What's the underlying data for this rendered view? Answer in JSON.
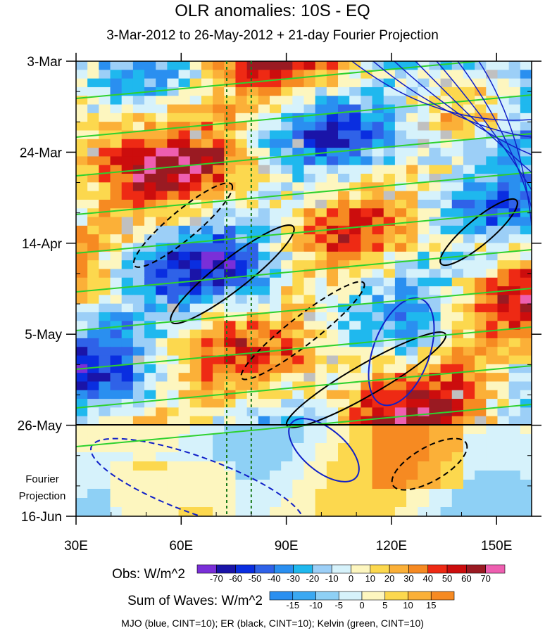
{
  "title": "OLR anomalies: 10S - EQ",
  "subtitle": "3-Mar-2012 to 26-May-2012 + 21-day Fourier Projection",
  "footer": "MJO (blue, CINT=10); ER (black, CINT=10); Kelvin (green, CINT=10)",
  "fourier_label": [
    "Fourier",
    "Projection"
  ],
  "chart_data": {
    "type": "heatmap",
    "title": "OLR anomalies: 10S - EQ",
    "subtitle": "3-Mar-2012 to 26-May-2012 + 21-day Fourier Projection",
    "x_axis": {
      "label": "",
      "range": [
        30,
        160
      ],
      "ticks": [
        "30E",
        "60E",
        "90E",
        "120E",
        "150E"
      ],
      "tick_values": [
        30,
        60,
        90,
        120,
        150
      ]
    },
    "y_axis": {
      "label": "",
      "range": [
        "3-Mar-2012",
        "16-Jun-2012"
      ],
      "reversed": true,
      "ticks": [
        "3-Mar",
        "24-Mar",
        "14-Apr",
        "5-May",
        "26-May",
        "16-Jun"
      ]
    },
    "projection_start": "26-May",
    "reference_longitudes": [
      73,
      80
    ],
    "obs_colorbar": {
      "label": "Obs: W/m^2",
      "tick_labels": [
        "-70",
        "-60",
        "-50",
        "-40",
        "-30",
        "-20",
        "-10",
        "0",
        "10",
        "20",
        "30",
        "40",
        "50",
        "60",
        "70"
      ],
      "colors": [
        "#7a2fd8",
        "#1a14a8",
        "#0a2ee0",
        "#2f62e8",
        "#2a8ff0",
        "#1fb8ee",
        "#9ccff7",
        "#d6f2fb",
        "#fdf6bf",
        "#fcd84e",
        "#fbb038",
        "#f68a22",
        "#ee2a14",
        "#cc0d0d",
        "#9a1a22",
        "#ee5fb0"
      ]
    },
    "waves_colorbar": {
      "label": "Sum of Waves: W/m^2",
      "tick_labels": [
        "-15",
        "-10",
        "-5",
        "0",
        "5",
        "10",
        "15"
      ],
      "colors": [
        "#2a8ff0",
        "#3aa8f2",
        "#8ed0f5",
        "#d6f2fb",
        "#fdf6bf",
        "#fcd84e",
        "#fbb038",
        "#f68a22"
      ]
    },
    "contours": [
      {
        "name": "MJO",
        "color": "blue",
        "cint": 10
      },
      {
        "name": "ER",
        "color": "black",
        "cint": 10
      },
      {
        "name": "Kelvin",
        "color": "green",
        "cint": 10
      }
    ]
  }
}
